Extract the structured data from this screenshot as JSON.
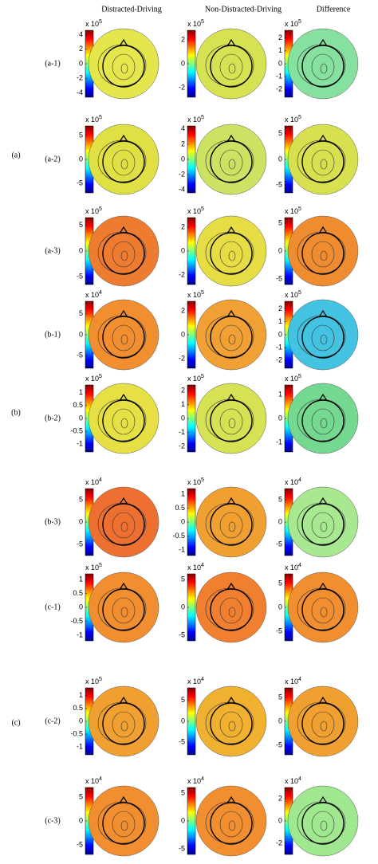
{
  "columns": [
    "Distracted-Driving",
    "Non-Distracted-Driving",
    "Difference"
  ],
  "groups": [
    {
      "label": "(a)",
      "rows": [
        {
          "label": "(a-1)",
          "cells": [
            {
              "scale": "x 10",
              "exponent": 5,
              "ticks": [
                4,
                2,
                0,
                -2,
                -4
              ],
              "lim": [
                -4.6,
                4.6
              ],
              "map_color": "#e4e64c"
            },
            {
              "scale": "x 10",
              "exponent": 5,
              "ticks": [
                2,
                0,
                -2
              ],
              "lim": [
                -2.8,
                2.8
              ],
              "map_color": "#d6e252"
            },
            {
              "scale": "x 10",
              "exponent": 5,
              "ticks": [
                2,
                1,
                0,
                -1,
                -2
              ],
              "lim": [
                -2.6,
                2.6
              ],
              "map_color": "#86e0a0"
            }
          ]
        },
        {
          "label": "(a-2)",
          "cells": [
            {
              "scale": "x 10",
              "exponent": 5,
              "ticks": [
                5,
                0,
                -5
              ],
              "lim": [
                -7,
                7
              ],
              "map_color": "#e0e044"
            },
            {
              "scale": "x 10",
              "exponent": 5,
              "ticks": [
                4,
                2,
                0,
                -2,
                -4
              ],
              "lim": [
                -4.4,
                4.4
              ],
              "map_color": "#cce262"
            },
            {
              "scale": "x 10",
              "exponent": 5,
              "ticks": [
                5,
                0,
                -5
              ],
              "lim": [
                -6.5,
                6.5
              ],
              "map_color": "#d8e050"
            }
          ]
        },
        {
          "label": "(a-3)",
          "cells": [
            {
              "scale": "x 10",
              "exponent": 5,
              "ticks": [
                5,
                0,
                -5
              ],
              "lim": [
                -6.5,
                6.5
              ],
              "map_color": "#ee7c30"
            },
            {
              "scale": "x 10",
              "exponent": 5,
              "ticks": [
                2,
                0,
                -2
              ],
              "lim": [
                -2.8,
                2.8
              ],
              "map_color": "#e6dc44"
            },
            {
              "scale": "x 10",
              "exponent": 5,
              "ticks": [
                5,
                0,
                -5
              ],
              "lim": [
                -6,
                6
              ],
              "map_color": "#ef8c30"
            }
          ]
        }
      ]
    },
    {
      "label": "(b)",
      "rows": [
        {
          "label": "(b-1)",
          "cells": [
            {
              "scale": "x 10",
              "exponent": 4,
              "ticks": [
                5,
                0,
                -5
              ],
              "lim": [
                -8,
                8
              ],
              "map_color": "#f08e30"
            },
            {
              "scale": "x 10",
              "exponent": 5,
              "ticks": [
                2,
                0,
                -2
              ],
              "lim": [
                -2.8,
                2.8
              ],
              "map_color": "#f0a034"
            },
            {
              "scale": "x 10",
              "exponent": 5,
              "ticks": [
                2,
                1,
                0,
                -1,
                -2
              ],
              "lim": [
                -2.6,
                2.6
              ],
              "map_color": "#44c2e2"
            }
          ]
        },
        {
          "label": "(b-2)",
          "cells": [
            {
              "scale": "x 10",
              "exponent": 5,
              "ticks": [
                1,
                0.5,
                0,
                -0.5,
                -1
              ],
              "lim": [
                -1.3,
                1.3
              ],
              "map_color": "#e6e044"
            },
            {
              "scale": "x 10",
              "exponent": 5,
              "ticks": [
                2,
                1,
                0,
                -1,
                -2
              ],
              "lim": [
                -2.4,
                2.4
              ],
              "map_color": "#d6e254"
            },
            {
              "scale": "x 10",
              "exponent": 5,
              "ticks": [
                1,
                0,
                -1
              ],
              "lim": [
                -1.4,
                1.4
              ],
              "map_color": "#74d890"
            }
          ]
        },
        {
          "label": "(b-3)",
          "cells": [
            {
              "scale": "x 10",
              "exponent": 4,
              "ticks": [
                5,
                0,
                -5
              ],
              "lim": [
                -7.5,
                7.5
              ],
              "map_color": "#ee7030"
            },
            {
              "scale": "x 10",
              "exponent": 5,
              "ticks": [
                1,
                0.5,
                0,
                -0.5,
                -1
              ],
              "lim": [
                -1.2,
                1.2
              ],
              "map_color": "#f0a030"
            },
            {
              "scale": "x 10",
              "exponent": 4,
              "ticks": [
                5,
                0,
                -5
              ],
              "lim": [
                -7.5,
                7.5
              ],
              "map_color": "#a8e890"
            }
          ]
        }
      ]
    },
    {
      "label": "(c)",
      "rows": [
        {
          "label": "(c-1)",
          "cells": [
            {
              "scale": "x 10",
              "exponent": 5,
              "ticks": [
                1,
                0.5,
                0,
                -0.5,
                -1
              ],
              "lim": [
                -1.2,
                1.2
              ],
              "map_color": "#f08e30"
            },
            {
              "scale": "x 10",
              "exponent": 4,
              "ticks": [
                5,
                0,
                -5
              ],
              "lim": [
                -6,
                6
              ],
              "map_color": "#f08030"
            },
            {
              "scale": "x 10",
              "exponent": 4,
              "ticks": [
                5,
                0,
                -5
              ],
              "lim": [
                -7,
                7
              ],
              "map_color": "#f08e30"
            }
          ]
        },
        {
          "label": "(c-2)",
          "cells": [
            {
              "scale": "x 10",
              "exponent": 5,
              "ticks": [
                1,
                0.5,
                0,
                -0.5,
                -1
              ],
              "lim": [
                -1.3,
                1.3
              ],
              "map_color": "#f0a030"
            },
            {
              "scale": "x 10",
              "exponent": 4,
              "ticks": [
                5,
                0,
                -5
              ],
              "lim": [
                -8,
                8
              ],
              "map_color": "#f0b030"
            },
            {
              "scale": "x 10",
              "exponent": 4,
              "ticks": [
                5,
                0,
                -5
              ],
              "lim": [
                -7,
                7
              ],
              "map_color": "#f0a030"
            }
          ]
        },
        {
          "label": "(c-3)",
          "cells": [
            {
              "scale": "x 10",
              "exponent": 4,
              "ticks": [
                5,
                0,
                -5
              ],
              "lim": [
                -7,
                7
              ],
              "map_color": "#f08e30"
            },
            {
              "scale": "x 10",
              "exponent": 4,
              "ticks": [
                5,
                0,
                -5
              ],
              "lim": [
                -6,
                6
              ],
              "map_color": "#f08e30"
            },
            {
              "scale": "x 10",
              "exponent": 4,
              "ticks": [
                2,
                0,
                -2
              ],
              "lim": [
                -3,
                3
              ],
              "map_color": "#a0e890"
            }
          ]
        }
      ]
    }
  ]
}
